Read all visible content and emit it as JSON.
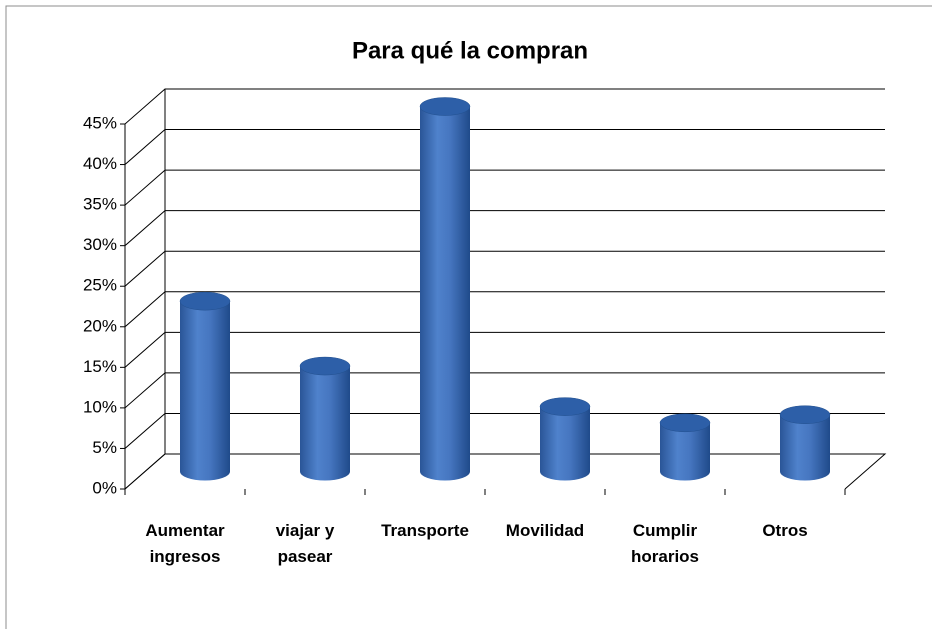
{
  "chart_data": {
    "type": "bar3d",
    "title": "Para qué la compran",
    "categories": [
      "Aumentar ingresos",
      "viajar y pasear",
      "Transporte",
      "Movilidad",
      "Cumplir horarios",
      "Otros"
    ],
    "values": [
      21,
      13,
      45,
      8,
      6,
      7
    ],
    "color": "#3f6fb8",
    "ylim": [
      0,
      45
    ],
    "yticks": [
      {
        "value": 0,
        "label": "0%"
      },
      {
        "value": 5,
        "label": "5%"
      },
      {
        "value": 10,
        "label": "10%"
      },
      {
        "value": 15,
        "label": "15%"
      },
      {
        "value": 20,
        "label": "20%"
      },
      {
        "value": 25,
        "label": "25%"
      },
      {
        "value": 30,
        "label": "30%"
      },
      {
        "value": 35,
        "label": "35%"
      },
      {
        "value": 40,
        "label": "40%"
      },
      {
        "value": 45,
        "label": "45%"
      }
    ],
    "grid": true
  }
}
